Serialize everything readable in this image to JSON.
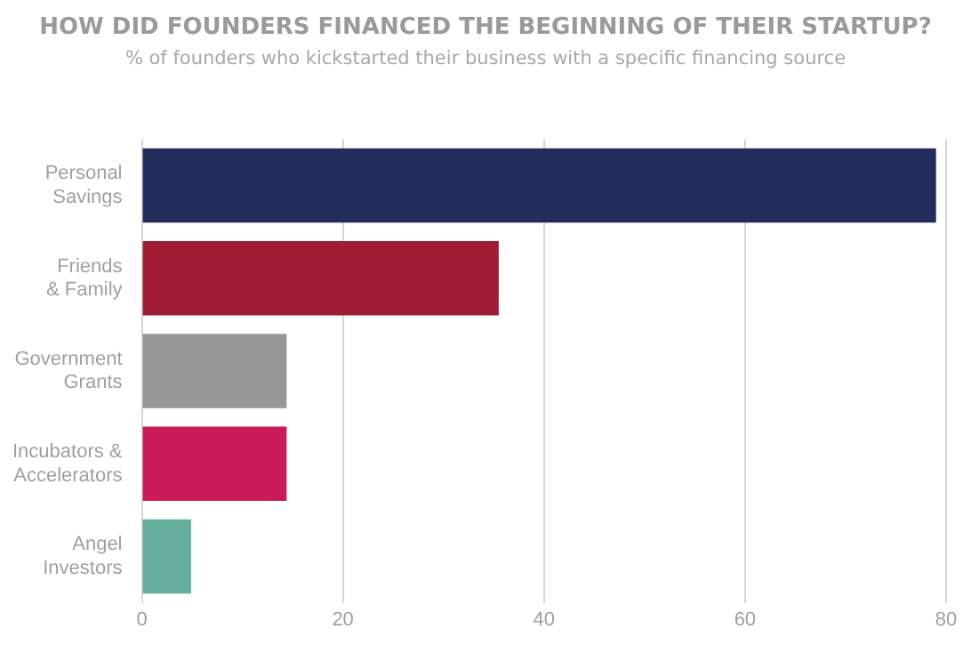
{
  "chart_data": {
    "type": "bar",
    "orientation": "horizontal",
    "title": "HOW DID FOUNDERS FINANCED THE BEGINNING OF THEIR STARTUP?",
    "subtitle": "% of founders who kickstarted their business with a specific financing source",
    "categories": [
      "Personal\nSavings",
      "Friends\n& Family",
      "Government\nGrants",
      "Incubators &\nAccelerators",
      "Angel\nInvestors"
    ],
    "values": [
      79,
      35.5,
      14.4,
      14.4,
      4.9
    ],
    "colors": [
      "#232d5c",
      "#a01c33",
      "#969796",
      "#c81b58",
      "#65ae9e"
    ],
    "xlim": [
      0,
      80
    ],
    "xticks": [
      0,
      20,
      40,
      60,
      80
    ],
    "grid": "x",
    "legend": false
  }
}
